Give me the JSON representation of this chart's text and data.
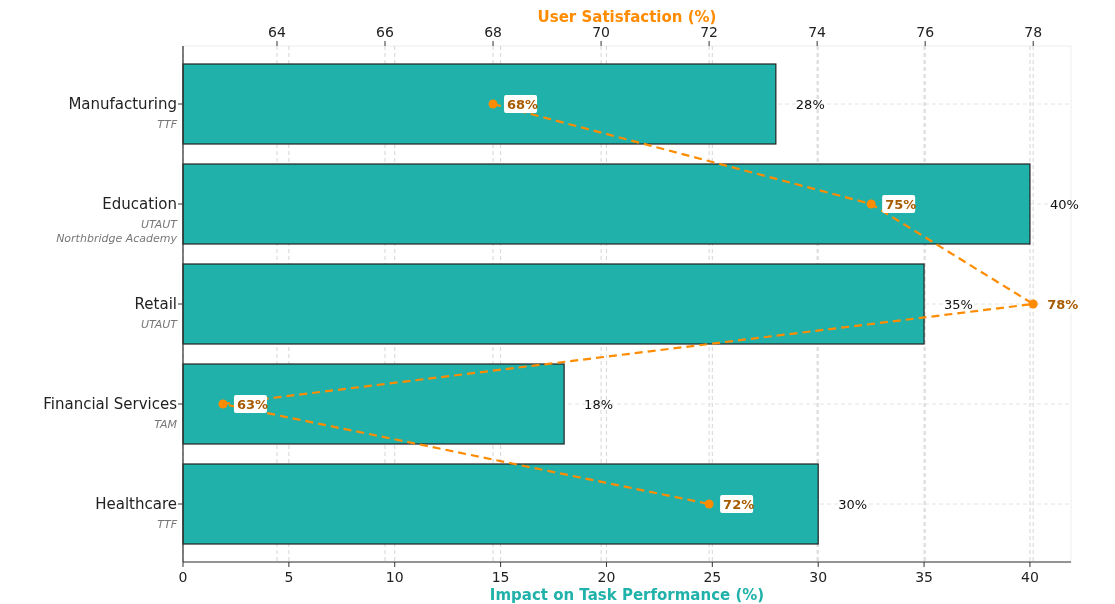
{
  "chart_data": {
    "type": "bar",
    "orientation": "horizontal",
    "xlabel": "Impact on Task Performance (%)",
    "x2label": "User Satisfaction (%)",
    "categories": [
      "Manufacturing\nTTF",
      "Education\nUTAUT\nNorthbridge Academy",
      "Retail\nUTAUT",
      "Financial Services\nTAM",
      "Healthcare\nTTF"
    ],
    "series": [
      {
        "color": "#20b2aa",
        "values": [
          28,
          40,
          35,
          18,
          30
        ],
        "value_labels": [
          "28%",
          "40%",
          "35%",
          "18%",
          "30%"
        ]
      },
      {
        "type": "line",
        "axis": "x2",
        "color": "#ff8c00",
        "values": [
          68,
          75,
          78,
          63,
          72
        ],
        "value_labels": [
          "68%",
          "75%",
          "78%",
          "63%",
          "72%"
        ],
        "marker": "circle",
        "line_style": "dashed"
      }
    ],
    "xlim": [
      0,
      41.94
    ],
    "xticks": [
      0,
      5,
      10,
      15,
      20,
      25,
      30,
      35,
      40
    ],
    "x2lim": [
      62.26,
      78.7
    ],
    "x2ticks": [
      64,
      66,
      68,
      70,
      72,
      74,
      76,
      78
    ],
    "grid": true
  }
}
